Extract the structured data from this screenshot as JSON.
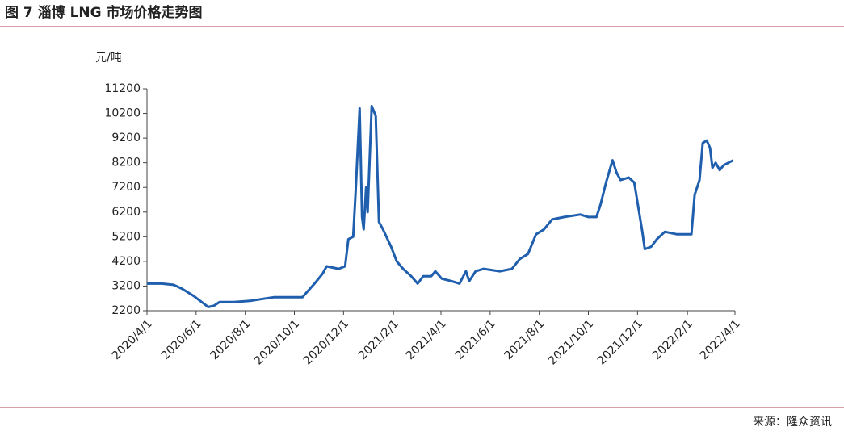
{
  "chart_data": {
    "type": "line",
    "title": "图 7 淄博 LNG 市场价格走势图",
    "y_label": "元/吨",
    "source": "来源：隆众资讯",
    "ylim": [
      2200,
      11200
    ],
    "yticks": [
      2200,
      3200,
      4200,
      5200,
      6200,
      7200,
      8200,
      9200,
      10200,
      11200
    ],
    "xlim": [
      "2020/4/1",
      "2022/4/1"
    ],
    "xticks": [
      "2020/4/1",
      "2020/6/1",
      "2020/8/1",
      "2020/10/1",
      "2020/12/1",
      "2021/2/1",
      "2021/4/1",
      "2021/6/1",
      "2021/8/1",
      "2021/10/1",
      "2021/12/1",
      "2022/2/1",
      "2022/4/1"
    ],
    "x": [
      "2020/4/1",
      "2020/4/19",
      "2020/5/4",
      "2020/5/14",
      "2020/5/29",
      "2020/6/10",
      "2020/6/16",
      "2020/6/23",
      "2020/6/30",
      "2020/7/18",
      "2020/8/7",
      "2020/8/27",
      "2020/9/6",
      "2020/10/11",
      "2020/10/26",
      "2020/11/5",
      "2020/11/10",
      "2020/11/25",
      "2020/12/3",
      "2020/12/7",
      "2020/12/13",
      "2020/12/16",
      "2020/12/21",
      "2020/12/24",
      "2020/12/26",
      "2020/12/29",
      "2020/12/31",
      "2021/1/5",
      "2021/1/10",
      "2021/1/14",
      "2021/1/19",
      "2021/1/29",
      "2021/2/5",
      "2021/2/13",
      "2021/2/23",
      "2021/3/3",
      "2021/3/10",
      "2021/3/20",
      "2021/3/25",
      "2021/4/2",
      "2021/4/14",
      "2021/4/24",
      "2021/5/2",
      "2021/5/6",
      "2021/5/14",
      "2021/5/24",
      "2021/6/13",
      "2021/6/28",
      "2021/7/8",
      "2021/7/18",
      "2021/7/28",
      "2021/8/7",
      "2021/8/17",
      "2021/9/1",
      "2021/9/21",
      "2021/10/1",
      "2021/10/11",
      "2021/10/16",
      "2021/10/23",
      "2021/10/31",
      "2021/11/5",
      "2021/11/10",
      "2021/11/20",
      "2021/11/27",
      "2021/12/2",
      "2021/12/7",
      "2021/12/10",
      "2021/12/18",
      "2021/12/25",
      "2022/1/4",
      "2022/1/19",
      "2022/1/29",
      "2022/2/6",
      "2022/2/10",
      "2022/2/16",
      "2022/2/20",
      "2022/2/25",
      "2022/3/1",
      "2022/3/4",
      "2022/3/8",
      "2022/3/13",
      "2022/3/18",
      "2022/3/30"
    ],
    "series": [
      {
        "name": "淄博LNG市场价格",
        "color": "#1f5fae",
        "values": [
          3300,
          3300,
          3250,
          3100,
          2800,
          2500,
          2350,
          2400,
          2550,
          2550,
          2600,
          2700,
          2750,
          2750,
          3300,
          3700,
          4000,
          3900,
          4000,
          5100,
          5200,
          7000,
          10400,
          6000,
          5500,
          7200,
          6200,
          10500,
          10100,
          5800,
          5500,
          4800,
          4200,
          3900,
          3600,
          3300,
          3600,
          3600,
          3800,
          3500,
          3400,
          3300,
          3800,
          3400,
          3800,
          3900,
          3800,
          3900,
          4300,
          4500,
          5300,
          5500,
          5900,
          6000,
          6100,
          6000,
          6000,
          6500,
          7400,
          8300,
          7800,
          7500,
          7600,
          7400,
          6400,
          5400,
          4700,
          4800,
          5100,
          5400,
          5300,
          5300,
          5300,
          6900,
          7500,
          9000,
          9100,
          8800,
          8000,
          8200,
          7900,
          8100,
          8300
        ]
      }
    ]
  }
}
